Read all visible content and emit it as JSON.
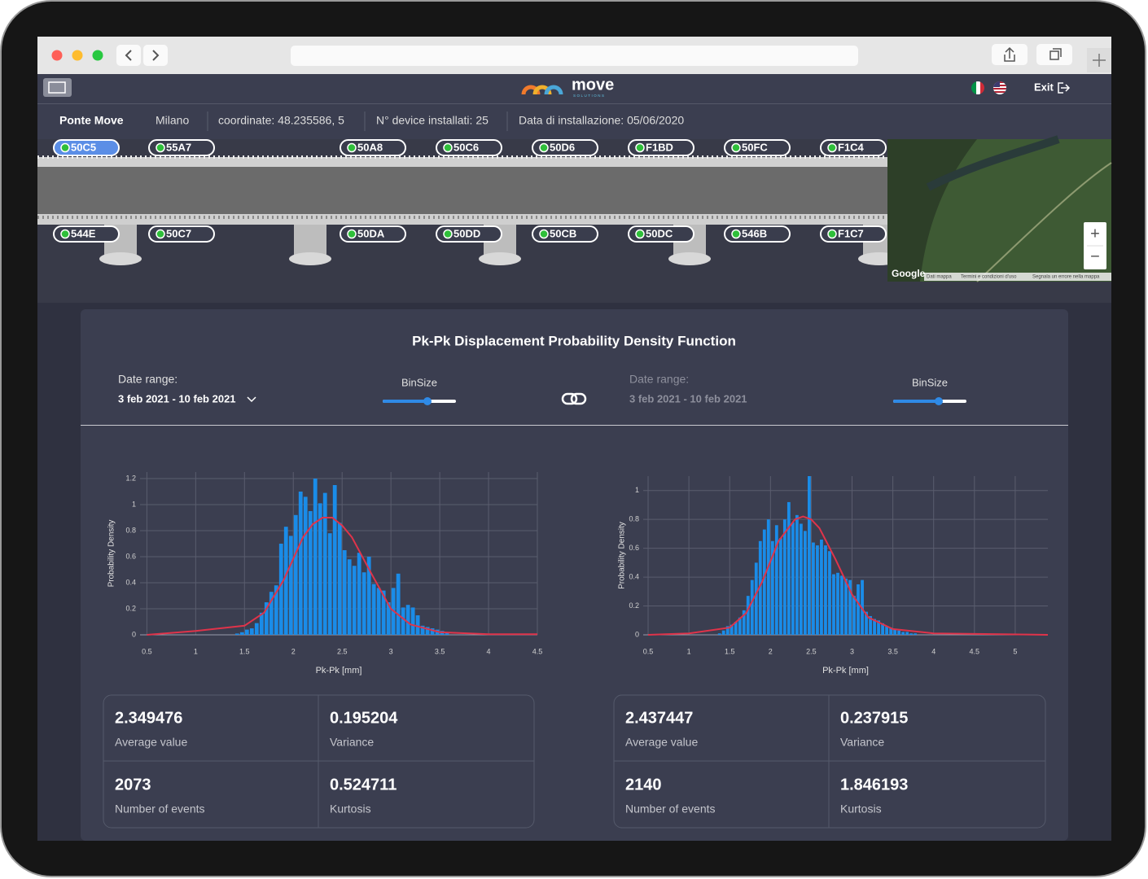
{
  "header": {
    "logo": "move",
    "logo_sub": "SOLUTIONS",
    "exit": "Exit"
  },
  "info": {
    "bridge": "Ponte Move",
    "city": "Milano",
    "coordinates": "coordinate: 48.235586, 5",
    "devices": "N° device installati: 25",
    "install_date": "Data di installazione: 05/06/2020"
  },
  "sensors": {
    "top": [
      "50C5",
      "55A7",
      "50A8",
      "50C6",
      "50D6",
      "F1BD",
      "50FC",
      "F1C4"
    ],
    "bottom": [
      "544E",
      "50C7",
      "50DA",
      "50DD",
      "50CB",
      "50DC",
      "546B",
      "F1C7"
    ]
  },
  "map": {
    "google": "Google",
    "zoom_in": "+",
    "zoom_out": "−",
    "attribution": [
      "Dati mappa",
      "Termini e condizioni d'uso",
      "Segnala un errore nella mappa"
    ]
  },
  "panel": {
    "title": "Pk-Pk Displacement Probability Density Function",
    "controls": [
      {
        "date_label": "Date range:",
        "date_value": "3 feb 2021 - 10 feb 2021",
        "bin_label": "BinSize"
      },
      {
        "date_label": "Date range:",
        "date_value": "3 feb 2021 - 10 feb 2021",
        "bin_label": "BinSize"
      }
    ]
  },
  "chart_data": [
    {
      "type": "histogram",
      "xlabel": "Pk-Pk [mm]",
      "ylabel": "Probability Density",
      "color": "#1a8ce8",
      "grid": true,
      "bins": [
        1.4,
        1.45,
        1.5,
        1.55,
        1.6,
        1.65,
        1.7,
        1.75,
        1.8,
        1.85,
        1.9,
        1.95,
        2,
        2.05,
        2.1,
        2.15,
        2.2,
        2.25,
        2.3,
        2.35,
        2.4,
        2.45,
        2.5,
        2.55,
        2.6,
        2.65,
        2.7,
        2.75,
        2.8,
        2.85,
        2.9,
        2.95,
        3,
        3.05,
        3.1,
        3.15,
        3.2,
        3.25,
        3.3,
        3.35,
        3.4,
        3.45,
        3.5,
        3.55,
        3.6
      ],
      "values": [
        0.01,
        0.02,
        0.04,
        0.05,
        0.09,
        0.17,
        0.25,
        0.33,
        0.38,
        0.7,
        0.83,
        0.76,
        0.92,
        1.1,
        1.06,
        0.95,
        1.2,
        1.01,
        1.09,
        0.78,
        1.15,
        0.86,
        0.65,
        0.58,
        0.53,
        0.63,
        0.48,
        0.6,
        0.39,
        0.36,
        0.34,
        0.25,
        0.36,
        0.47,
        0.21,
        0.23,
        0.21,
        0.15,
        0.07,
        0.06,
        0.05,
        0.04,
        0.03,
        0.02
      ],
      "fit": {
        "color": "#e0334a",
        "x": [
          0.5,
          1,
          1.5,
          1.7,
          1.9,
          2.1,
          2.2,
          2.3,
          2.4,
          2.5,
          2.6,
          2.8,
          3,
          3.2,
          3.5,
          4,
          4.5
        ],
        "values": [
          0,
          0.03,
          0.07,
          0.17,
          0.42,
          0.75,
          0.85,
          0.9,
          0.9,
          0.84,
          0.75,
          0.47,
          0.2,
          0.08,
          0.02,
          0.005,
          0.005
        ]
      },
      "xlim": [
        0.43,
        4.5
      ],
      "ylim": [
        0,
        1.25
      ],
      "xticks": [
        0.5,
        1,
        1.5,
        2,
        2.5,
        3,
        3.5,
        4,
        4.5
      ],
      "yticks": [
        0,
        0.2,
        0.4,
        0.6,
        0.8,
        1,
        1.2
      ]
    },
    {
      "type": "histogram",
      "xlabel": "Pk-Pk [mm]",
      "ylabel": "Probability Density",
      "color": "#1a8ce8",
      "grid": true,
      "bins": [
        1.35,
        1.4,
        1.45,
        1.5,
        1.55,
        1.6,
        1.65,
        1.7,
        1.75,
        1.8,
        1.85,
        1.9,
        1.95,
        2,
        2.05,
        2.1,
        2.15,
        2.2,
        2.25,
        2.3,
        2.35,
        2.4,
        2.45,
        2.5,
        2.55,
        2.6,
        2.65,
        2.7,
        2.75,
        2.8,
        2.85,
        2.9,
        2.95,
        3,
        3.05,
        3.1,
        3.15,
        3.2,
        3.25,
        3.3,
        3.35,
        3.4,
        3.45,
        3.5,
        3.55,
        3.6,
        3.65,
        3.7,
        3.75,
        3.8
      ],
      "values": [
        0.01,
        0.03,
        0.06,
        0.07,
        0.09,
        0.12,
        0.17,
        0.27,
        0.38,
        0.5,
        0.65,
        0.73,
        0.8,
        0.65,
        0.76,
        0.67,
        0.8,
        0.92,
        0.78,
        0.83,
        0.77,
        0.72,
        1.1,
        0.64,
        0.62,
        0.66,
        0.62,
        0.58,
        0.42,
        0.43,
        0.41,
        0.39,
        0.38,
        0.27,
        0.35,
        0.38,
        0.16,
        0.13,
        0.11,
        0.1,
        0.08,
        0.06,
        0.05,
        0.04,
        0.03,
        0.02,
        0.02,
        0.01,
        0.01
      ],
      "fit": {
        "color": "#e0334a",
        "x": [
          0.5,
          1,
          1.5,
          1.7,
          1.9,
          2.1,
          2.3,
          2.4,
          2.5,
          2.6,
          2.8,
          3,
          3.2,
          3.5,
          4,
          5.4
        ],
        "values": [
          0,
          0.01,
          0.05,
          0.15,
          0.37,
          0.65,
          0.8,
          0.82,
          0.8,
          0.74,
          0.52,
          0.28,
          0.12,
          0.04,
          0.01,
          0
        ]
      },
      "xlim": [
        0.44,
        5.4
      ],
      "ylim": [
        0,
        1.1
      ],
      "xticks": [
        0.5,
        1,
        1.5,
        2,
        2.5,
        3,
        3.5,
        4,
        4.5,
        5
      ],
      "yticks": [
        0,
        0.2,
        0.4,
        0.6,
        0.8,
        1
      ]
    }
  ],
  "stats": [
    [
      {
        "value": 2.349476,
        "label": "Average value"
      },
      {
        "value": 0.195204,
        "label": "Variance"
      },
      {
        "value": 2073,
        "label": "Number of events"
      },
      {
        "value": 0.524711,
        "label": "Kurtosis"
      }
    ],
    [
      {
        "value": 2.437447,
        "label": "Average value"
      },
      {
        "value": 0.237915,
        "label": "Variance"
      },
      {
        "value": 2140,
        "label": "Number of events"
      },
      {
        "value": 1.846193,
        "label": "Kurtosis"
      }
    ]
  ]
}
